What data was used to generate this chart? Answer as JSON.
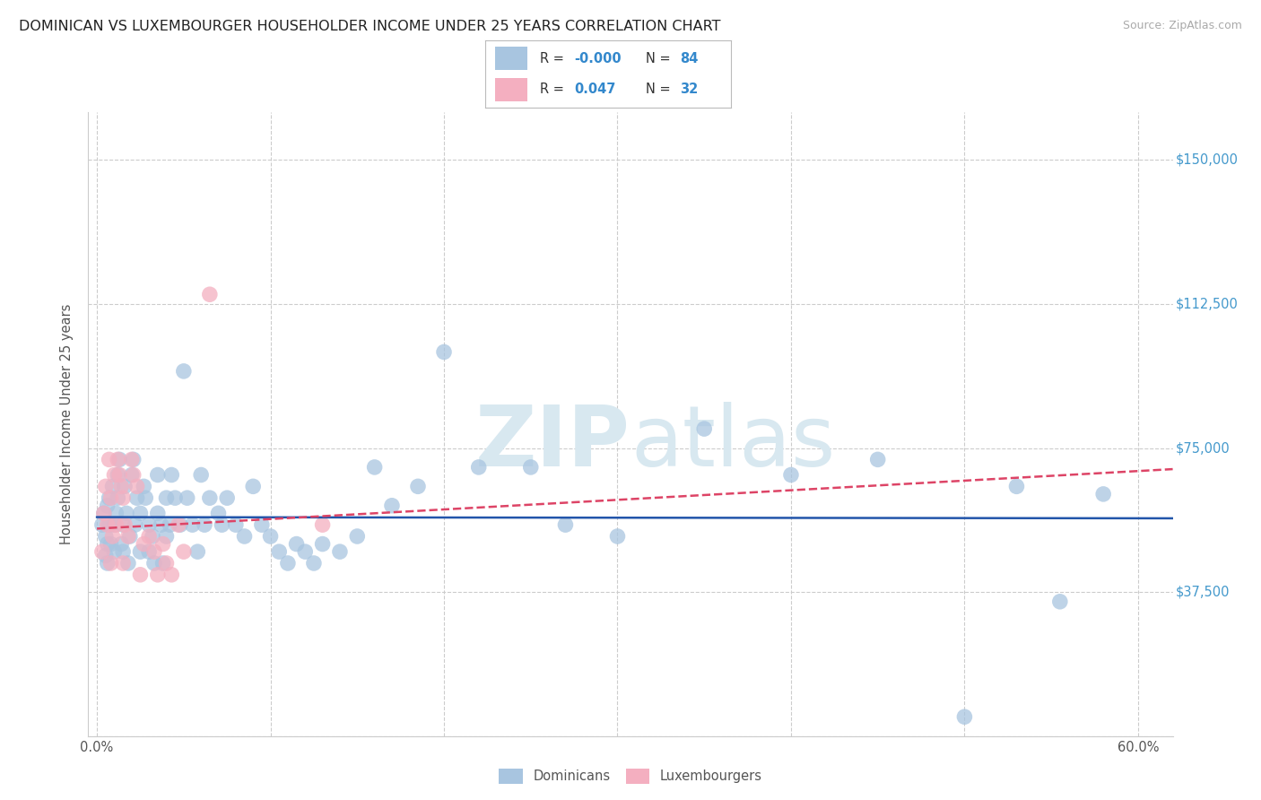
{
  "title": "DOMINICAN VS LUXEMBOURGER HOUSEHOLDER INCOME UNDER 25 YEARS CORRELATION CHART",
  "source": "Source: ZipAtlas.com",
  "ylabel": "Householder Income Under 25 years",
  "xlim": [
    -0.005,
    0.62
  ],
  "ylim": [
    0,
    162500
  ],
  "yticks": [
    0,
    37500,
    75000,
    112500,
    150000
  ],
  "xtick_positions": [
    0.0,
    0.1,
    0.2,
    0.3,
    0.4,
    0.5,
    0.6
  ],
  "xtick_labels": [
    "0.0%",
    "",
    "",
    "",
    "",
    "",
    "60.0%"
  ],
  "legend_r_blue": "-0.000",
  "legend_n_blue": "84",
  "legend_r_pink": "0.047",
  "legend_n_pink": "32",
  "blue_scatter_color": "#a8c5e0",
  "pink_scatter_color": "#f4afc0",
  "blue_line_color": "#2255aa",
  "pink_line_color": "#dd4466",
  "title_color": "#222222",
  "source_color": "#aaaaaa",
  "ylabel_color": "#555555",
  "ytick_color": "#4499cc",
  "xtick_color": "#555555",
  "grid_color": "#cccccc",
  "legend_border_color": "#bbbbbb",
  "watermark_color": "#d8e8f0",
  "dom_x": [
    0.003,
    0.004,
    0.005,
    0.005,
    0.006,
    0.006,
    0.006,
    0.007,
    0.007,
    0.008,
    0.009,
    0.01,
    0.01,
    0.011,
    0.012,
    0.012,
    0.013,
    0.014,
    0.015,
    0.015,
    0.016,
    0.017,
    0.018,
    0.019,
    0.02,
    0.021,
    0.022,
    0.023,
    0.025,
    0.025,
    0.027,
    0.028,
    0.03,
    0.03,
    0.032,
    0.033,
    0.035,
    0.035,
    0.037,
    0.038,
    0.04,
    0.04,
    0.042,
    0.043,
    0.045,
    0.048,
    0.05,
    0.052,
    0.055,
    0.058,
    0.06,
    0.062,
    0.065,
    0.07,
    0.072,
    0.075,
    0.08,
    0.085,
    0.09,
    0.095,
    0.1,
    0.105,
    0.11,
    0.115,
    0.12,
    0.125,
    0.13,
    0.14,
    0.15,
    0.16,
    0.17,
    0.185,
    0.2,
    0.22,
    0.25,
    0.27,
    0.3,
    0.35,
    0.4,
    0.45,
    0.5,
    0.53,
    0.555,
    0.58
  ],
  "dom_y": [
    55000,
    58000,
    52000,
    47000,
    60000,
    50000,
    45000,
    62000,
    55000,
    50000,
    65000,
    48000,
    55000,
    58000,
    62000,
    68000,
    72000,
    50000,
    55000,
    48000,
    65000,
    58000,
    45000,
    52000,
    68000,
    72000,
    55000,
    62000,
    58000,
    48000,
    65000,
    62000,
    55000,
    48000,
    52000,
    45000,
    68000,
    58000,
    55000,
    45000,
    62000,
    52000,
    55000,
    68000,
    62000,
    55000,
    95000,
    62000,
    55000,
    48000,
    68000,
    55000,
    62000,
    58000,
    55000,
    62000,
    55000,
    52000,
    65000,
    55000,
    52000,
    48000,
    45000,
    50000,
    48000,
    45000,
    50000,
    48000,
    52000,
    70000,
    60000,
    65000,
    100000,
    70000,
    70000,
    55000,
    52000,
    80000,
    68000,
    72000,
    5000,
    65000,
    35000,
    63000
  ],
  "lux_x": [
    0.003,
    0.004,
    0.005,
    0.006,
    0.007,
    0.008,
    0.008,
    0.009,
    0.01,
    0.011,
    0.012,
    0.013,
    0.014,
    0.015,
    0.015,
    0.016,
    0.018,
    0.02,
    0.021,
    0.023,
    0.025,
    0.027,
    0.03,
    0.033,
    0.035,
    0.038,
    0.04,
    0.043,
    0.047,
    0.05,
    0.065,
    0.13
  ],
  "lux_y": [
    48000,
    58000,
    65000,
    55000,
    72000,
    62000,
    45000,
    52000,
    68000,
    55000,
    72000,
    68000,
    65000,
    62000,
    45000,
    55000,
    52000,
    72000,
    68000,
    65000,
    42000,
    50000,
    52000,
    48000,
    42000,
    50000,
    45000,
    42000,
    55000,
    48000,
    115000,
    55000
  ]
}
